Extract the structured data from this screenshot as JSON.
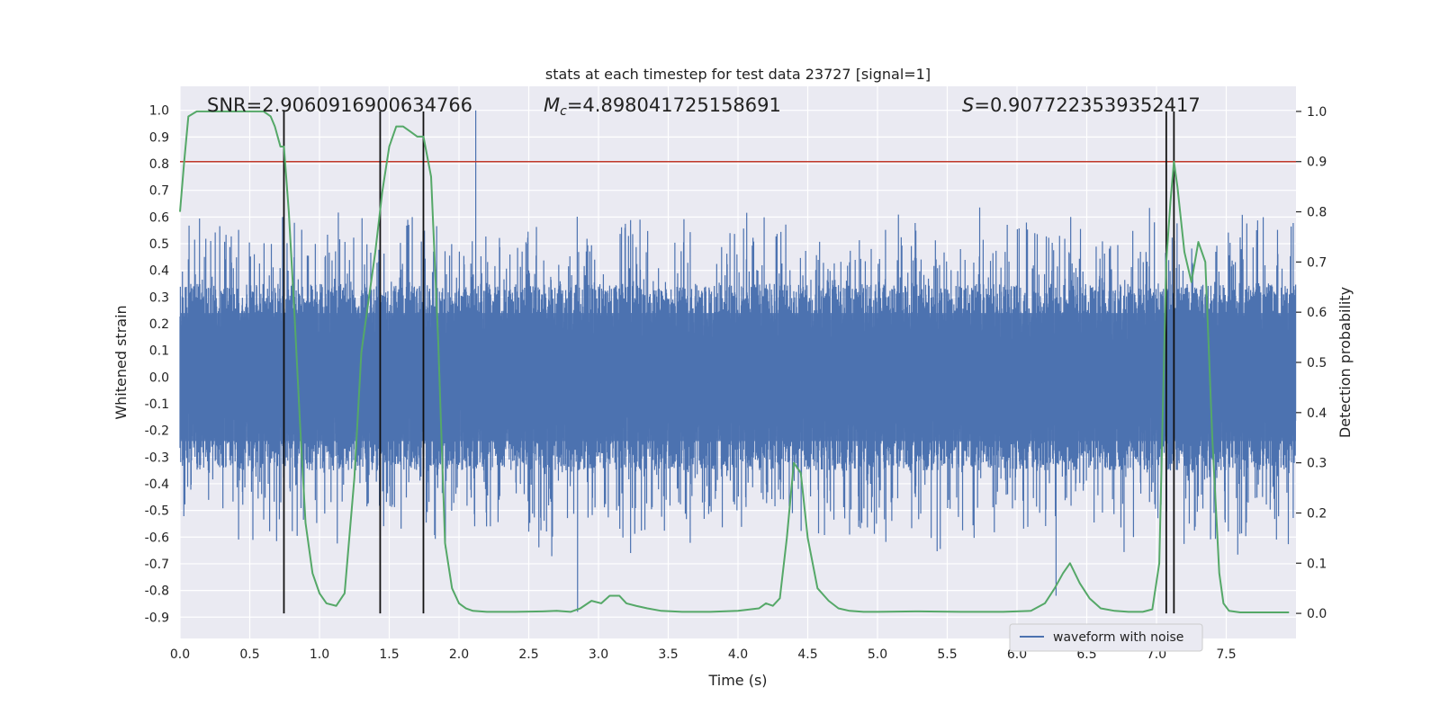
{
  "chart_data": {
    "type": "line",
    "title": "stats at each timestep for test data 23727 [signal=1]",
    "xlabel": "Time (s)",
    "ylabel_left": "Whitened strain",
    "ylabel_right": "Detection probability",
    "xlim": [
      0,
      8
    ],
    "ylim_left": [
      -0.98,
      1.09
    ],
    "ylim_right": [
      -0.05,
      1.05
    ],
    "x_ticks": [
      "0.0",
      "0.5",
      "1.0",
      "1.5",
      "2.0",
      "2.5",
      "3.0",
      "3.5",
      "4.0",
      "4.5",
      "5.0",
      "5.5",
      "6.0",
      "6.5",
      "7.0",
      "7.5"
    ],
    "y_left_ticks": [
      "-0.9",
      "-0.8",
      "-0.7",
      "-0.6",
      "-0.5",
      "-0.4",
      "-0.3",
      "-0.2",
      "-0.1",
      "0.0",
      "0.1",
      "0.2",
      "0.3",
      "0.4",
      "0.5",
      "0.6",
      "0.7",
      "0.8",
      "0.9",
      "1.0"
    ],
    "y_right_ticks": [
      "0.0",
      "0.1",
      "0.2",
      "0.3",
      "0.4",
      "0.5",
      "0.6",
      "0.7",
      "0.8",
      "0.9",
      "1.0"
    ],
    "annotations": {
      "snr": "SNR=2.9060916900634766",
      "mc_symbol": "M",
      "mc_sub": "c",
      "mc_value": "=4.898041725158691",
      "s_symbol": "S",
      "s_value": "=0.9077223539352417"
    },
    "legend": {
      "entry": "waveform with noise",
      "placement": "lower-right"
    },
    "threshold": {
      "value": 0.9,
      "color": "#c0392b"
    },
    "vertical_lines": [
      0.745,
      1.435,
      1.745,
      7.07,
      7.125
    ],
    "waveform": {
      "name": "waveform with noise",
      "color": "#4c72b0",
      "typical_range": [
        -0.35,
        0.35
      ],
      "envelope_max": 0.65,
      "envelope_min": -0.68,
      "peak_spikes": [
        [
          2.12,
          1.0
        ],
        [
          2.85,
          -0.88
        ],
        [
          6.28,
          -0.82
        ]
      ]
    },
    "detection_probability": {
      "name": "detection probability",
      "color": "#55a868",
      "x": [
        0.0,
        0.03,
        0.06,
        0.12,
        0.2,
        0.3,
        0.4,
        0.5,
        0.6,
        0.65,
        0.68,
        0.72,
        0.745,
        0.78,
        0.82,
        0.86,
        0.9,
        0.95,
        1.0,
        1.05,
        1.12,
        1.18,
        1.25,
        1.3,
        1.35,
        1.4,
        1.45,
        1.5,
        1.55,
        1.6,
        1.65,
        1.7,
        1.745,
        1.8,
        1.85,
        1.9,
        1.95,
        2.0,
        2.05,
        2.1,
        2.2,
        2.4,
        2.6,
        2.7,
        2.8,
        2.87,
        2.95,
        3.02,
        3.08,
        3.15,
        3.2,
        3.27,
        3.35,
        3.45,
        3.6,
        3.8,
        4.0,
        4.15,
        4.2,
        4.25,
        4.3,
        4.35,
        4.4,
        4.45,
        4.5,
        4.57,
        4.65,
        4.72,
        4.8,
        4.9,
        5.0,
        5.3,
        5.6,
        5.9,
        6.1,
        6.2,
        6.27,
        6.33,
        6.38,
        6.45,
        6.52,
        6.6,
        6.7,
        6.8,
        6.9,
        6.97,
        7.02,
        7.07,
        7.1,
        7.125,
        7.15,
        7.2,
        7.25,
        7.3,
        7.35,
        7.4,
        7.45,
        7.48,
        7.52,
        7.6,
        7.8,
        7.95
      ],
      "y": [
        0.8,
        0.9,
        0.99,
        1.0,
        1.0,
        1.0,
        1.0,
        1.0,
        1.0,
        0.99,
        0.97,
        0.93,
        0.93,
        0.8,
        0.6,
        0.38,
        0.18,
        0.08,
        0.04,
        0.02,
        0.015,
        0.04,
        0.27,
        0.52,
        0.62,
        0.72,
        0.84,
        0.93,
        0.97,
        0.97,
        0.96,
        0.95,
        0.95,
        0.87,
        0.55,
        0.14,
        0.05,
        0.02,
        0.01,
        0.005,
        0.003,
        0.003,
        0.004,
        0.005,
        0.003,
        0.01,
        0.025,
        0.02,
        0.035,
        0.035,
        0.02,
        0.015,
        0.01,
        0.005,
        0.003,
        0.003,
        0.005,
        0.01,
        0.02,
        0.015,
        0.03,
        0.15,
        0.3,
        0.28,
        0.15,
        0.05,
        0.025,
        0.01,
        0.005,
        0.003,
        0.003,
        0.004,
        0.003,
        0.003,
        0.005,
        0.02,
        0.05,
        0.08,
        0.1,
        0.06,
        0.03,
        0.01,
        0.005,
        0.003,
        0.003,
        0.008,
        0.1,
        0.7,
        0.82,
        0.9,
        0.85,
        0.72,
        0.66,
        0.74,
        0.7,
        0.35,
        0.08,
        0.02,
        0.005,
        0.002,
        0.002,
        0.002
      ]
    }
  }
}
